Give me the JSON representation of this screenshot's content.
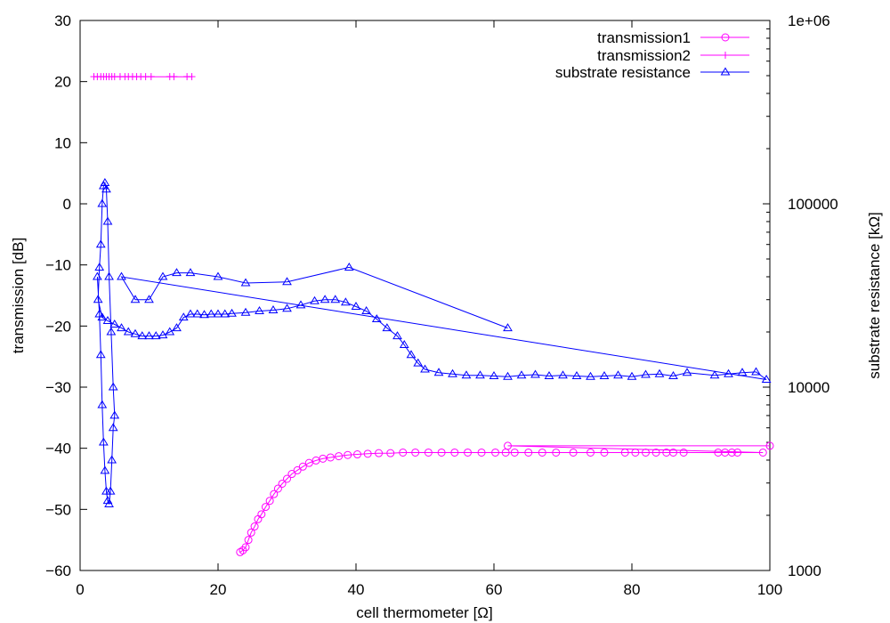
{
  "chart_data": {
    "type": "scatter",
    "xlabel": "cell thermometer [Ω]",
    "ylabel": "transmission [dB]",
    "y2label": "substrate resistance [kΩ]",
    "xlim": [
      0,
      100
    ],
    "ylim": [
      -60,
      30
    ],
    "y2lim": [
      1000,
      1000000
    ],
    "y2scale": "log",
    "grid": false,
    "legend_position": "top-right",
    "x_ticks": [
      "0",
      "20",
      "40",
      "60",
      "80",
      "100"
    ],
    "y_ticks": [
      "-60",
      "-50",
      "-40",
      "-30",
      "-20",
      "-10",
      "0",
      "10",
      "20",
      "30"
    ],
    "y2_ticks": [
      "1000",
      "10000",
      "100000",
      "1e+06"
    ],
    "series": [
      {
        "name": "transmission1",
        "axis": "y",
        "color": "#ff00ff",
        "marker": "circle",
        "points": [
          [
            23.2,
            -57.0
          ],
          [
            23.6,
            -56.7
          ],
          [
            24.0,
            -56.2
          ],
          [
            24.4,
            -55.0
          ],
          [
            24.8,
            -53.8
          ],
          [
            25.3,
            -52.8
          ],
          [
            25.8,
            -51.6
          ],
          [
            26.3,
            -50.8
          ],
          [
            26.9,
            -49.6
          ],
          [
            27.5,
            -48.6
          ],
          [
            28.1,
            -47.5
          ],
          [
            28.7,
            -46.6
          ],
          [
            29.3,
            -45.8
          ],
          [
            30.0,
            -45.0
          ],
          [
            30.7,
            -44.2
          ],
          [
            31.5,
            -43.6
          ],
          [
            32.3,
            -43.0
          ],
          [
            33.2,
            -42.4
          ],
          [
            34.2,
            -42.0
          ],
          [
            35.2,
            -41.7
          ],
          [
            36.3,
            -41.5
          ],
          [
            37.5,
            -41.3
          ],
          [
            38.8,
            -41.1
          ],
          [
            40.2,
            -41.0
          ],
          [
            41.7,
            -40.9
          ],
          [
            43.3,
            -40.8
          ],
          [
            45.0,
            -40.8
          ],
          [
            46.8,
            -40.7
          ],
          [
            48.6,
            -40.7
          ],
          [
            50.5,
            -40.7
          ],
          [
            52.4,
            -40.7
          ],
          [
            54.3,
            -40.7
          ],
          [
            56.2,
            -40.7
          ],
          [
            58.2,
            -40.7
          ],
          [
            60.2,
            -40.7
          ],
          [
            61.7,
            -40.7
          ],
          [
            63.0,
            -40.7
          ],
          [
            65.0,
            -40.7
          ],
          [
            67.0,
            -40.7
          ],
          [
            69.0,
            -40.7
          ],
          [
            71.5,
            -40.7
          ],
          [
            74.0,
            -40.7
          ],
          [
            76.0,
            -40.7
          ],
          [
            79.0,
            -40.7
          ],
          [
            80.5,
            -40.7
          ],
          [
            82.0,
            -40.7
          ],
          [
            83.5,
            -40.7
          ],
          [
            85.0,
            -40.7
          ],
          [
            86.0,
            -40.7
          ],
          [
            87.5,
            -40.7
          ],
          [
            92.5,
            -40.7
          ],
          [
            93.5,
            -40.7
          ],
          [
            94.5,
            -40.7
          ],
          [
            95.3,
            -40.7
          ],
          [
            99.0,
            -40.7
          ],
          [
            62.0,
            -39.6
          ],
          [
            100.0,
            -39.6
          ]
        ]
      },
      {
        "name": "transmission2",
        "axis": "y",
        "color": "#ff00ff",
        "marker": "plus",
        "points": [
          [
            2.0,
            20.8
          ],
          [
            2.5,
            20.8
          ],
          [
            3.0,
            20.8
          ],
          [
            3.4,
            20.8
          ],
          [
            3.8,
            20.8
          ],
          [
            4.2,
            20.8
          ],
          [
            4.6,
            20.8
          ],
          [
            5.0,
            20.8
          ],
          [
            5.8,
            20.8
          ],
          [
            6.5,
            20.8
          ],
          [
            7.0,
            20.8
          ],
          [
            7.6,
            20.8
          ],
          [
            8.2,
            20.8
          ],
          [
            8.8,
            20.8
          ],
          [
            9.5,
            20.8
          ],
          [
            10.3,
            20.8
          ],
          [
            13.0,
            20.8
          ],
          [
            13.6,
            20.8
          ],
          [
            15.5,
            20.8
          ],
          [
            16.2,
            20.8
          ]
        ]
      },
      {
        "name": "substrate resistance",
        "axis": "y2",
        "color": "#0000ff",
        "marker": "triangle",
        "points": [
          [
            2.5,
            40000
          ],
          [
            2.8,
            25000
          ],
          [
            3.0,
            15000
          ],
          [
            3.2,
            8000
          ],
          [
            3.4,
            5000
          ],
          [
            3.6,
            3500
          ],
          [
            3.8,
            2700
          ],
          [
            4.0,
            2400
          ],
          [
            4.2,
            2300
          ],
          [
            4.4,
            2700
          ],
          [
            4.6,
            4000
          ],
          [
            4.8,
            6000
          ],
          [
            5.0,
            7000
          ],
          [
            4.8,
            10000
          ],
          [
            4.5,
            20000
          ],
          [
            4.2,
            40000
          ],
          [
            4.0,
            80000
          ],
          [
            3.8,
            120000
          ],
          [
            3.6,
            130000
          ],
          [
            3.4,
            125000
          ],
          [
            3.2,
            100000
          ],
          [
            3.0,
            60000
          ],
          [
            2.8,
            45000
          ],
          [
            2.6,
            30000
          ],
          [
            3.2,
            24000
          ],
          [
            4.0,
            23000
          ],
          [
            5.0,
            22000
          ],
          [
            6.0,
            21000
          ],
          [
            7.0,
            20000
          ],
          [
            8.0,
            19500
          ],
          [
            9.0,
            19000
          ],
          [
            10.0,
            19000
          ],
          [
            11.0,
            19000
          ],
          [
            12.0,
            19200
          ],
          [
            13.0,
            20000
          ],
          [
            14.0,
            21000
          ],
          [
            15.0,
            24000
          ],
          [
            16.0,
            25000
          ],
          [
            17.0,
            25000
          ],
          [
            18.0,
            24800
          ],
          [
            19.0,
            25000
          ],
          [
            20.0,
            25000
          ],
          [
            21.0,
            25000
          ],
          [
            22.0,
            25200
          ],
          [
            24.0,
            25500
          ],
          [
            26.0,
            26000
          ],
          [
            28.0,
            26300
          ],
          [
            30.0,
            26800
          ],
          [
            32.0,
            28000
          ],
          [
            34.0,
            29500
          ],
          [
            35.5,
            30000
          ],
          [
            37.0,
            30000
          ],
          [
            38.5,
            29000
          ],
          [
            40.0,
            27500
          ],
          [
            41.5,
            26000
          ],
          [
            43.0,
            23500
          ],
          [
            44.5,
            21000
          ],
          [
            46.0,
            19000
          ],
          [
            47.0,
            17000
          ],
          [
            48.0,
            15000
          ],
          [
            49.0,
            13500
          ],
          [
            50.0,
            12500
          ],
          [
            52.0,
            12000
          ],
          [
            54.0,
            11800
          ],
          [
            56.0,
            11600
          ],
          [
            58.0,
            11600
          ],
          [
            60.0,
            11500
          ],
          [
            62.0,
            11400
          ],
          [
            64.0,
            11600
          ],
          [
            66.0,
            11700
          ],
          [
            68.0,
            11500
          ],
          [
            70.0,
            11600
          ],
          [
            72.0,
            11500
          ],
          [
            74.0,
            11400
          ],
          [
            76.0,
            11500
          ],
          [
            78.0,
            11600
          ],
          [
            80.0,
            11400
          ],
          [
            82.0,
            11700
          ],
          [
            84.0,
            11800
          ],
          [
            86.0,
            11500
          ],
          [
            88.0,
            12000
          ],
          [
            92.0,
            11600
          ],
          [
            94.0,
            11800
          ],
          [
            96.0,
            12000
          ],
          [
            98.0,
            12100
          ],
          [
            99.5,
            11000
          ],
          [
            6.0,
            40000
          ],
          [
            8.0,
            30000
          ],
          [
            10.0,
            30000
          ],
          [
            12.0,
            40000
          ],
          [
            14.0,
            42000
          ],
          [
            16.0,
            42000
          ],
          [
            20.0,
            40000
          ],
          [
            24.0,
            37000
          ],
          [
            30.0,
            37500
          ],
          [
            39.0,
            45000
          ],
          [
            62.0,
            21000
          ]
        ]
      }
    ]
  }
}
